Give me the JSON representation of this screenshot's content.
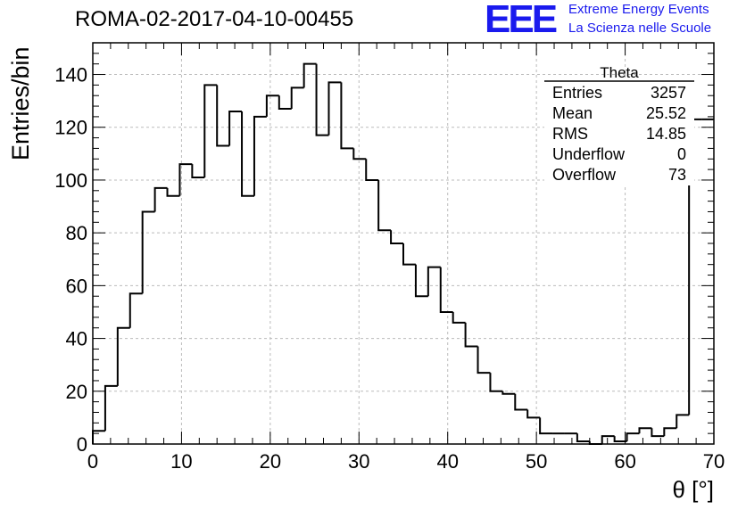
{
  "title": "ROMA-02-2017-04-10-00455",
  "logo": {
    "mark": "EEE",
    "line1": "Extreme Energy Events",
    "line2": "La Scienza nelle Scuole"
  },
  "colors": {
    "logo": "#1a1aee",
    "histogram": "#000000",
    "grid": "#bbbbbb"
  },
  "stats_box": {
    "title": "Theta",
    "rows": [
      {
        "label": "Entries",
        "value": "3257"
      },
      {
        "label": "Mean",
        "value": "25.52"
      },
      {
        "label": "RMS",
        "value": "14.85"
      },
      {
        "label": "Underflow",
        "value": "0"
      },
      {
        "label": "Overflow",
        "value": "73"
      }
    ]
  },
  "chart_data": {
    "type": "bar",
    "style": "step-histogram",
    "xlabel": "θ [°]",
    "ylabel": "Entries/bin",
    "xlim": [
      0,
      70
    ],
    "ylim": [
      0,
      152
    ],
    "x_ticks": [
      0,
      10,
      20,
      30,
      40,
      50,
      60,
      70
    ],
    "y_ticks": [
      0,
      20,
      40,
      60,
      80,
      100,
      120,
      140
    ],
    "grid": true,
    "bin_width": 1.4,
    "values": [
      5,
      22,
      44,
      57,
      88,
      97,
      94,
      106,
      101,
      136,
      113,
      126,
      94,
      124,
      132,
      127,
      135,
      144,
      117,
      137,
      112,
      108,
      100,
      81,
      76,
      68,
      56,
      67,
      50,
      46,
      37,
      27,
      20,
      19,
      13,
      10,
      4,
      4,
      4,
      1,
      0,
      3,
      1,
      4,
      6,
      3,
      6,
      11,
      123,
      123
    ]
  }
}
